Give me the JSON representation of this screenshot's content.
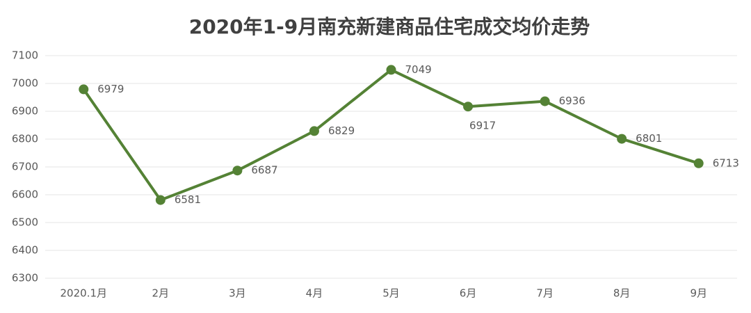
{
  "chart_data": {
    "type": "line",
    "title": "2020年1-9月南充新建商品住宅成交均价走势",
    "categories": [
      "2020.1月",
      "2月",
      "3月",
      "4月",
      "5月",
      "6月",
      "7月",
      "8月",
      "9月"
    ],
    "values": [
      6979,
      6581,
      6687,
      6829,
      7049,
      6917,
      6936,
      6801,
      6713
    ],
    "color": "#548235",
    "ylim": [
      6300,
      7100
    ],
    "yticks": [
      6300,
      6400,
      6500,
      6600,
      6700,
      6800,
      6900,
      7000,
      7100
    ],
    "grid": true
  }
}
